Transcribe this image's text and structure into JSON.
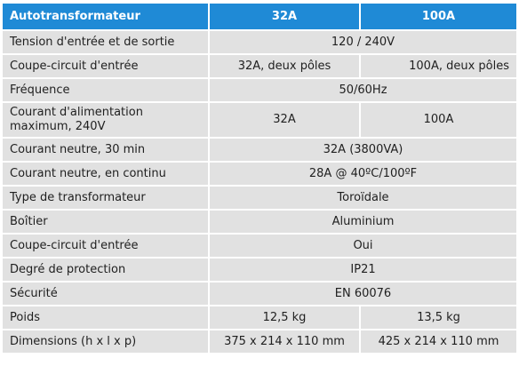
{
  "table": {
    "header": [
      "Autotransformateur",
      "32A",
      "100A"
    ],
    "rows": {
      "tension": {
        "label": "Tension d'entrée et de sortie",
        "value": "120 / 240V"
      },
      "coupe_circuit": {
        "label": "Coupe-circuit d'entrée",
        "v32": "32A, deux pôles",
        "v100": "100A, deux pôles"
      },
      "frequence": {
        "label": "Fréquence",
        "value": "50/60Hz"
      },
      "courant_alim": {
        "label_line1": "Courant d'alimentation",
        "label_line2": "maximum, 240V",
        "v32": "32A",
        "v100": "100A"
      },
      "neutre_30": {
        "label": "Courant neutre, 30 min",
        "value": "32A (3800VA)"
      },
      "neutre_continu": {
        "label": "Courant neutre, en continu",
        "value": "28A @ 40ºC/100ºF"
      },
      "type": {
        "label": "Type de transformateur",
        "value": "Toroïdale"
      },
      "boitier": {
        "label": "Boîtier",
        "value": "Aluminium"
      },
      "coupe_circuit_2": {
        "label": "Coupe-circuit d'entrée",
        "value": "Oui"
      },
      "protection": {
        "label": "Degré de protection",
        "value": "IP21"
      },
      "securite": {
        "label": "Sécurité",
        "value": "EN 60076"
      },
      "poids": {
        "label": "Poids",
        "v32": "12,5 kg",
        "v100": "13,5 kg"
      },
      "dimensions": {
        "label": "Dimensions (h x l x p)",
        "v32": "375 x 214 x 110 mm",
        "v100": "425 x 214 x 110 mm"
      }
    }
  }
}
